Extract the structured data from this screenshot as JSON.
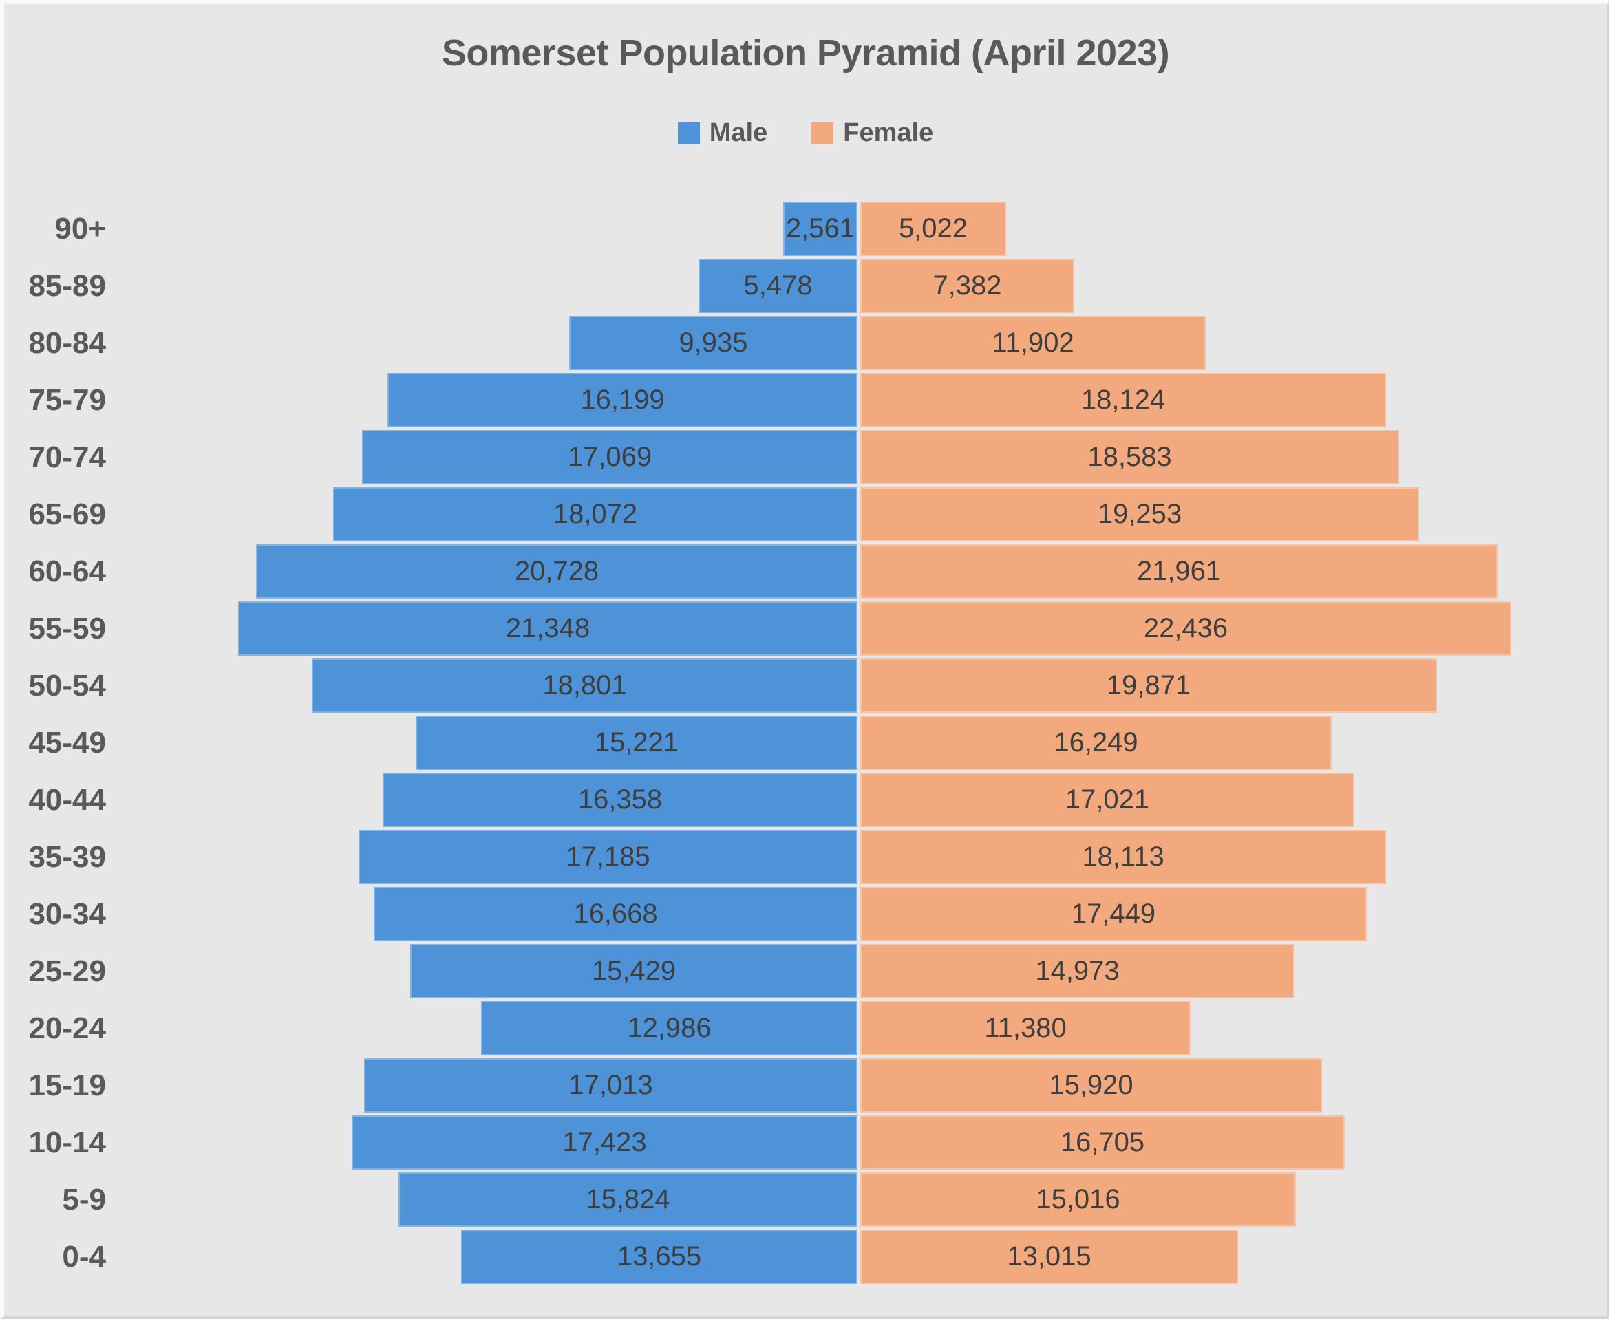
{
  "chart_data": {
    "type": "bar",
    "variant": "population_pyramid",
    "orientation": "horizontal",
    "title": "Somerset Population Pyramid (April 2023)",
    "legend_position": "top",
    "categories": [
      "90+",
      "85-89",
      "80-84",
      "75-79",
      "70-74",
      "65-69",
      "60-64",
      "55-59",
      "50-54",
      "45-49",
      "40-44",
      "35-39",
      "30-34",
      "25-29",
      "20-24",
      "15-19",
      "10-14",
      "5-9",
      "0-4"
    ],
    "series": [
      {
        "name": "Male",
        "side": "left",
        "color": "#4E93D8",
        "values": [
          2561,
          5478,
          9935,
          16199,
          17069,
          18072,
          20728,
          21348,
          18801,
          15221,
          16358,
          17185,
          16668,
          15429,
          12986,
          17013,
          17423,
          15824,
          13655
        ]
      },
      {
        "name": "Female",
        "side": "right",
        "color": "#F2A97E",
        "values": [
          5022,
          7382,
          11902,
          18124,
          18583,
          19253,
          21961,
          22436,
          19871,
          16249,
          17021,
          18113,
          17449,
          14973,
          11380,
          15920,
          16705,
          15016,
          13015
        ]
      }
    ],
    "value_axis": {
      "min": 0,
      "max": 25000,
      "visible": false
    },
    "data_labels": {
      "position": "inside-center",
      "format": "#,##0"
    },
    "grid": false,
    "colors": {
      "background": "#E7E7E7",
      "title_text": "#595959",
      "category_text": "#595959",
      "data_label_text": "#3E3E3E"
    }
  }
}
